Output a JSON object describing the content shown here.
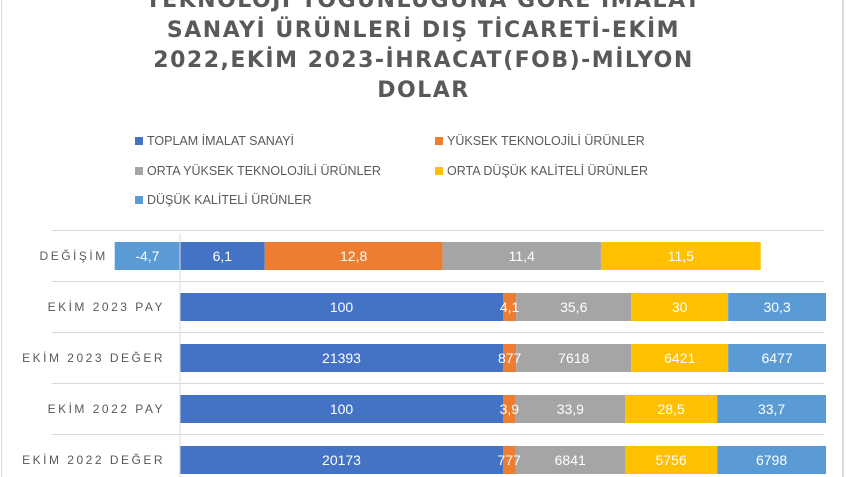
{
  "chart_data": {
    "type": "bar",
    "orientation": "horizontal",
    "stacking": "percent",
    "title_lines": [
      "TEKNOLOJİ YOĞUNLUĞUNA GÖRE İMALAT",
      "SANAYİ ÜRÜNLERİ DIŞ TİCARETİ-EKİM",
      "2022,EKİM 2023-İHRACAT(FOB)-MİLYON",
      "DOLAR"
    ],
    "categories": [
      "EKİM 2022 DEĞER",
      "EKİM 2022 PAY",
      "EKİM 2023 DEĞER",
      "EKİM 2023 PAY",
      "DEĞİŞİM"
    ],
    "series": [
      {
        "name": "TOPLAM İMALAT SANAYİ",
        "color": "#4472c4",
        "values": [
          20173,
          100,
          21393,
          100,
          6.1
        ],
        "labels": [
          "20173",
          "100",
          "21393",
          "100",
          "6,1"
        ]
      },
      {
        "name": "YÜKSEK TEKNOLOJİLİ ÜRÜNLER",
        "color": "#ed7d31",
        "values": [
          777,
          3.9,
          877,
          4.1,
          12.8
        ],
        "labels": [
          "777",
          "3,9",
          "877",
          "4,1",
          "12,8"
        ]
      },
      {
        "name": "ORTA YÜKSEK TEKNOLOJİLİ ÜRÜNLER",
        "color": "#a5a5a5",
        "values": [
          6841,
          33.9,
          7618,
          35.6,
          11.4
        ],
        "labels": [
          "6841",
          "33,9",
          "7618",
          "35,6",
          "11,4"
        ]
      },
      {
        "name": "ORTA DÜŞÜK KALİTELİ ÜRÜNLER",
        "color": "#ffc000",
        "values": [
          5756,
          28.5,
          6421,
          30,
          11.5
        ],
        "labels": [
          "5756",
          "28,5",
          "6421",
          "30",
          "11,5"
        ]
      },
      {
        "name": "DÜŞÜK KALİTELİ ÜRÜNLER",
        "color": "#5b9bd5",
        "values": [
          6798,
          33.7,
          6477,
          30.3,
          -4.7
        ],
        "labels": [
          "6798",
          "33,7",
          "6477",
          "30,3",
          "-4,7"
        ]
      }
    ],
    "legend_position": "top",
    "grid": true
  }
}
